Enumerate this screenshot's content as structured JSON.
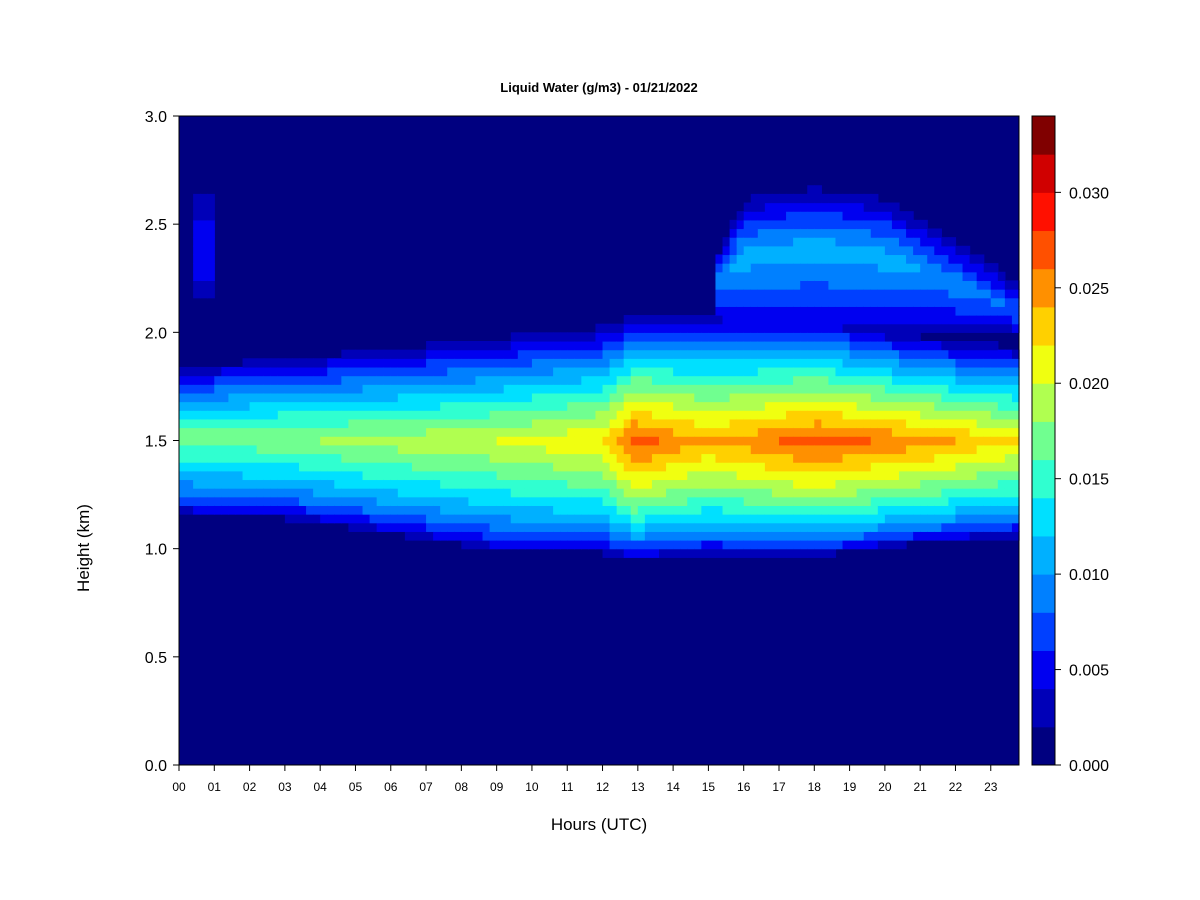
{
  "chart_data": {
    "type": "heatmap",
    "title": "Liquid Water (g/m3) - 01/21/2022",
    "xlabel": "Hours (UTC)",
    "ylabel": "Height (km)",
    "x_ticks": [
      "00",
      "01",
      "02",
      "03",
      "04",
      "05",
      "06",
      "07",
      "08",
      "09",
      "10",
      "11",
      "12",
      "13",
      "14",
      "15",
      "16",
      "17",
      "18",
      "19",
      "20",
      "21",
      "22",
      "23"
    ],
    "xlim": [
      0,
      23.8
    ],
    "y_ticks": [
      "0.0",
      "0.5",
      "1.0",
      "1.5",
      "2.0",
      "2.5",
      "3.0"
    ],
    "ylim": [
      0,
      3.0
    ],
    "colorbar": {
      "ticks": [
        "0.000",
        "0.005",
        "0.010",
        "0.015",
        "0.020",
        "0.025",
        "0.030"
      ],
      "range": [
        0,
        0.032
      ],
      "levels": 16,
      "colors": [
        "#000080",
        "#0000b8",
        "#0000f0",
        "#0040ff",
        "#0080ff",
        "#00b0ff",
        "#00e0ff",
        "#30ffd0",
        "#70ff90",
        "#b0ff50",
        "#f0ff10",
        "#ffd000",
        "#ff9000",
        "#ff5000",
        "#ff1000",
        "#d00000",
        "#800000"
      ]
    },
    "layers": [
      {
        "hours": [
          0,
          3,
          6,
          9,
          12,
          12.9,
          15,
          18,
          21,
          23.8
        ],
        "base_km": [
          1.15,
          1.13,
          1.06,
          0.98,
          0.97,
          0.95,
          0.97,
          0.96,
          1.02,
          1.05
        ],
        "top_km": [
          1.86,
          1.9,
          1.95,
          2.0,
          2.05,
          2.1,
          2.12,
          2.1,
          2.0,
          1.95
        ],
        "peak_km": [
          1.52,
          1.52,
          1.5,
          1.5,
          1.5,
          1.5,
          1.5,
          1.5,
          1.5,
          1.5
        ],
        "peak_lwc": [
          0.017,
          0.018,
          0.019,
          0.02,
          0.022,
          0.027,
          0.024,
          0.027,
          0.025,
          0.022
        ]
      },
      {
        "hours": [
          15.2,
          16,
          18,
          20,
          21,
          22.5,
          23.8
        ],
        "base_km": [
          2.0,
          1.98,
          1.98,
          1.98,
          1.98,
          1.98,
          1.98
        ],
        "top_km": [
          2.35,
          2.65,
          2.7,
          2.65,
          2.55,
          2.4,
          2.25
        ],
        "peak_km": [
          2.25,
          2.35,
          2.4,
          2.35,
          2.3,
          2.2,
          2.1
        ],
        "peak_lwc": [
          0.009,
          0.011,
          0.011,
          0.011,
          0.01,
          0.009,
          0.008
        ]
      },
      {
        "hours": [
          0.5,
          1.0
        ],
        "base_km": [
          2.1,
          2.1
        ],
        "top_km": [
          2.7,
          2.7
        ],
        "peak_km": [
          2.4,
          2.4
        ],
        "peak_lwc": [
          0.006,
          0.006
        ]
      }
    ]
  }
}
